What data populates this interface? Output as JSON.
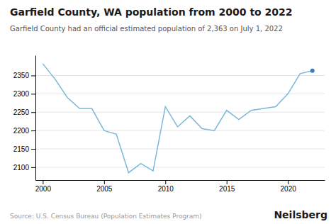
{
  "chart_data": {
    "type": "line",
    "title": "Garfield County, WA population from 2000 to 2022",
    "subtitle": "Garfield County had an official estimated population of 2,363 on July 1, 2022",
    "source": "Source: U.S. Census Bureau (Population Estimates Program)",
    "brand": "Neilsberg",
    "x": [
      2000,
      2001,
      2002,
      2003,
      2004,
      2005,
      2006,
      2007,
      2008,
      2009,
      2010,
      2011,
      2012,
      2013,
      2014,
      2015,
      2016,
      2017,
      2018,
      2019,
      2020,
      2021,
      2022
    ],
    "series": [
      {
        "type": "line",
        "color": "#7ab8d9",
        "values": [
          2382,
          2340,
          2290,
          2260,
          2260,
          2200,
          2190,
          2085,
          2110,
          2090,
          2265,
          2210,
          2240,
          2205,
          2200,
          2255,
          2230,
          2255,
          2260,
          2265,
          2300,
          2355,
          2363
        ]
      },
      {
        "type": "scatter",
        "color": "#3a7abf",
        "x": [
          2022
        ],
        "values": [
          2363
        ]
      }
    ],
    "xlim": [
      1999.4,
      2023.0
    ],
    "ylim": [
      2065,
      2405
    ],
    "xticks": [
      2000,
      2005,
      2010,
      2015,
      2020
    ],
    "yticks": [
      2100,
      2150,
      2200,
      2250,
      2300,
      2350
    ],
    "grid": true
  }
}
